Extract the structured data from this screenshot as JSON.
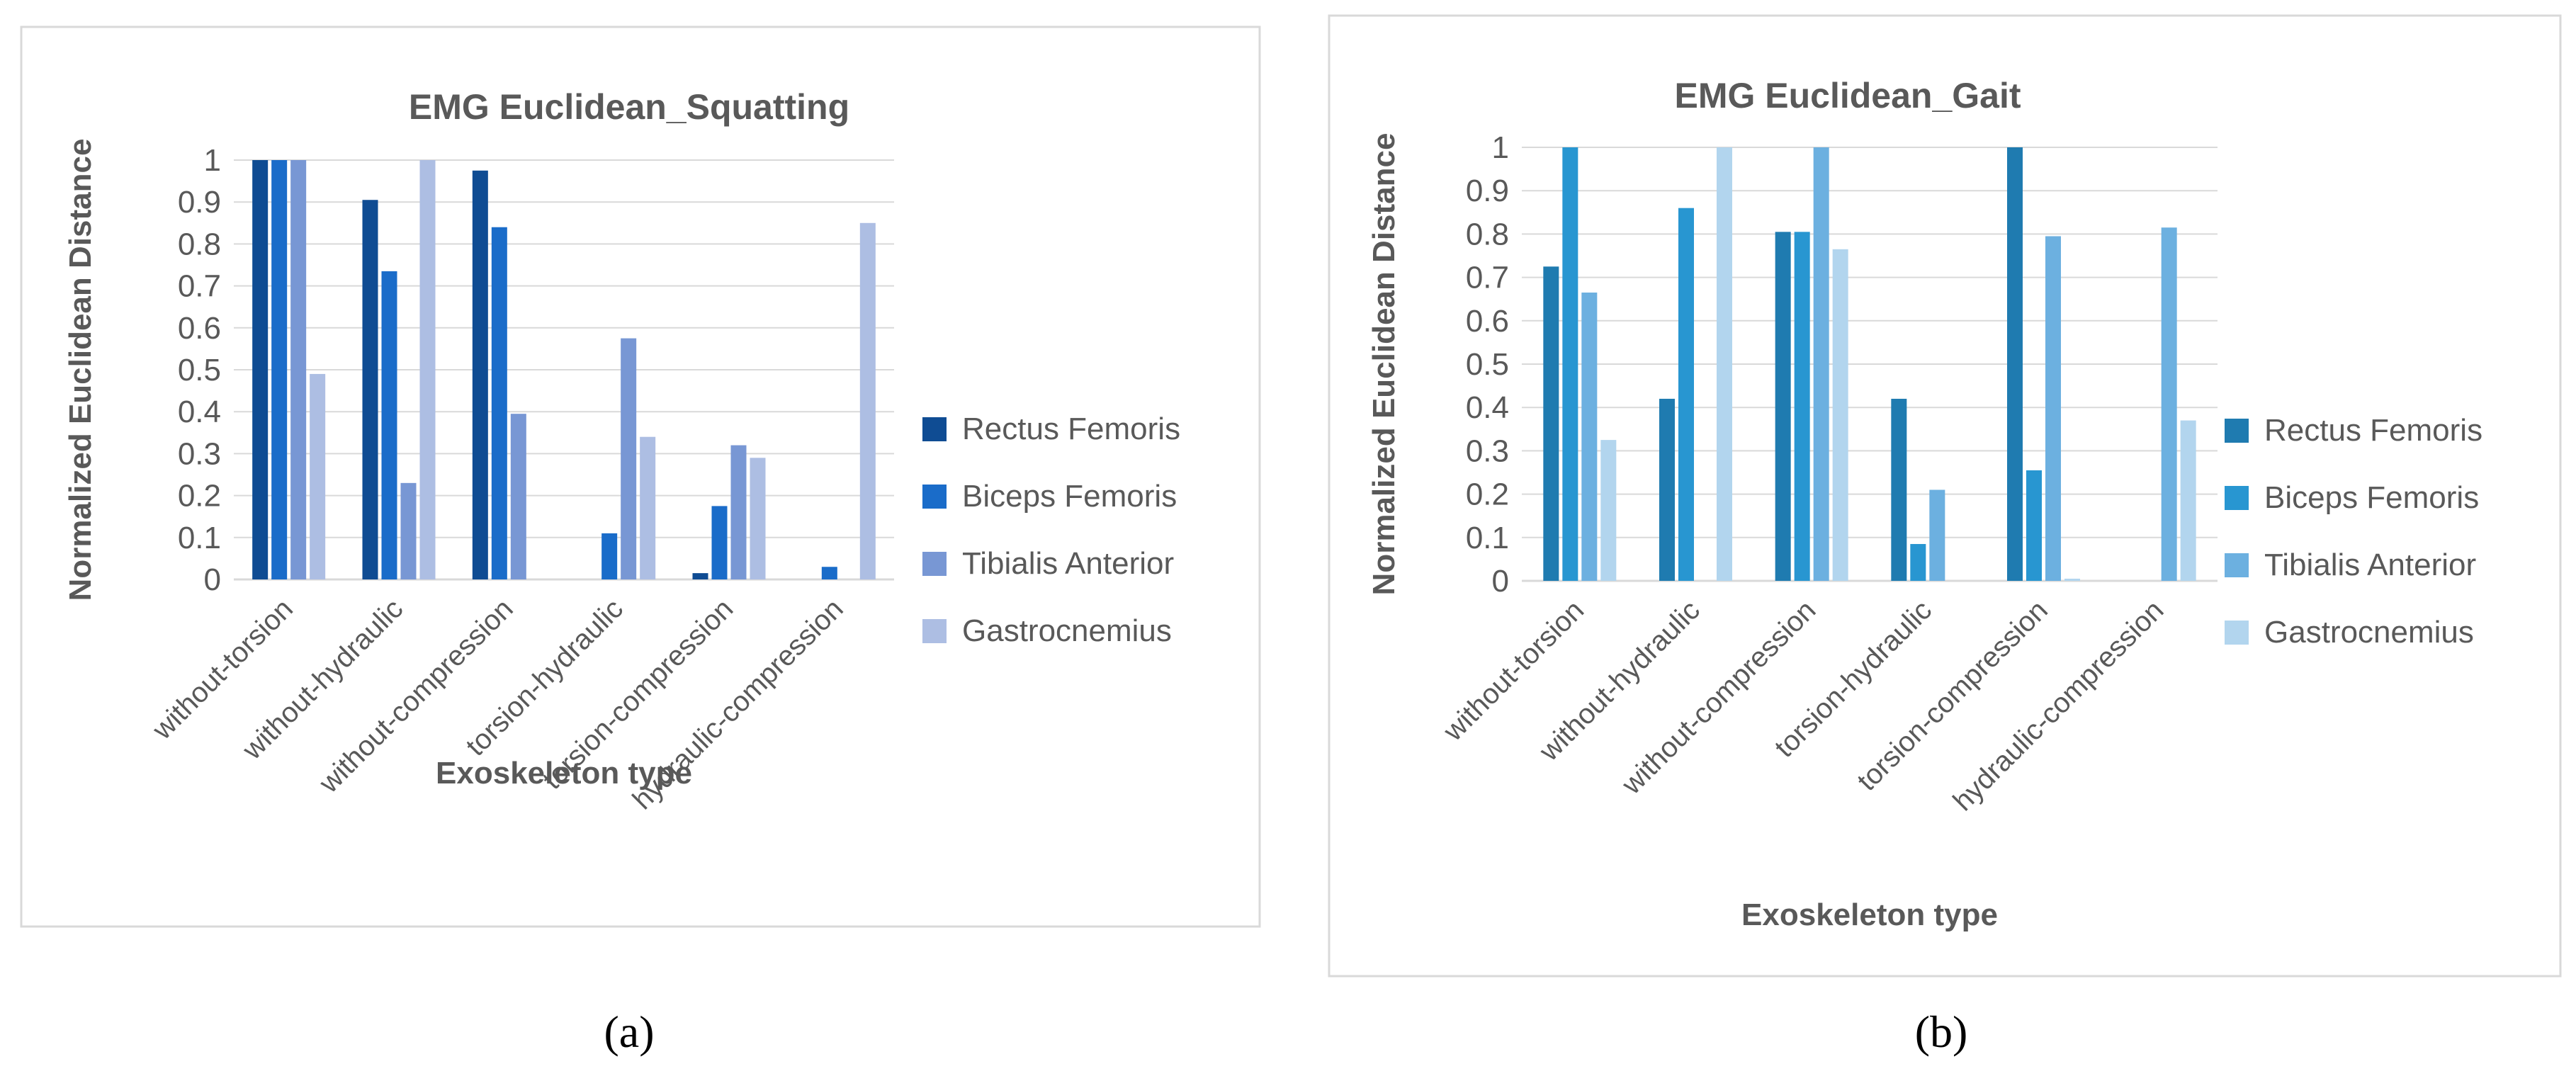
{
  "chart_data": [
    {
      "type": "bar",
      "caption": "(a)",
      "title": "EMG  Euclidean_Squatting",
      "xlabel": "Exoskeleton type",
      "ylabel": "Normalized Euclidean Distance",
      "ylim": [
        0,
        1
      ],
      "yticks": [
        "0",
        "0.1",
        "0.2",
        "0.3",
        "0.4",
        "0.5",
        "0.6",
        "0.7",
        "0.8",
        "0.9",
        "1"
      ],
      "grid": true,
      "legend_position": "right",
      "categories": [
        "without-torsion",
        "without-hydraulic",
        "without-compression",
        "torsion-hydraulic",
        "torsion-compression",
        "hydraulic-compression"
      ],
      "series": [
        {
          "name": "Rectus Femoris",
          "color": "#0f4c93",
          "values": [
            1.0,
            0.905,
            0.975,
            0.0,
            0.015,
            0.0
          ]
        },
        {
          "name": "Biceps Femoris",
          "color": "#1a6cc9",
          "values": [
            1.0,
            0.735,
            0.84,
            0.11,
            0.175,
            0.03
          ]
        },
        {
          "name": "Tibialis Anterior",
          "color": "#7897d4",
          "values": [
            1.0,
            0.23,
            0.395,
            0.575,
            0.32,
            0.0
          ]
        },
        {
          "name": "Gastrocnemius",
          "color": "#adbee3",
          "values": [
            0.49,
            1.0,
            0.0,
            0.34,
            0.29,
            0.85
          ]
        }
      ]
    },
    {
      "type": "bar",
      "caption": "(b)",
      "title": "EMG  Euclidean_Gait",
      "xlabel": "Exoskeleton type",
      "ylabel": "Normalized Euclidean Distance",
      "ylim": [
        0,
        1
      ],
      "yticks": [
        "0",
        "0.1",
        "0.2",
        "0.3",
        "0.4",
        "0.5",
        "0.6",
        "0.7",
        "0.8",
        "0.9",
        "1"
      ],
      "grid": true,
      "legend_position": "right",
      "categories": [
        "without-torsion",
        "without-hydraulic",
        "without-compression",
        "torsion-hydraulic",
        "torsion-compression",
        "hydraulic-compression"
      ],
      "series": [
        {
          "name": "Rectus Femoris",
          "color": "#1f7bb0",
          "values": [
            0.725,
            0.42,
            0.805,
            0.42,
            1.0,
            0.0
          ]
        },
        {
          "name": "Biceps Femoris",
          "color": "#2896d1",
          "values": [
            1.0,
            0.86,
            0.805,
            0.085,
            0.255,
            0.0
          ]
        },
        {
          "name": "Tibialis Anterior",
          "color": "#6cb0e0",
          "values": [
            0.665,
            0.0,
            1.0,
            0.21,
            0.795,
            0.815
          ]
        },
        {
          "name": "Gastrocnemius",
          "color": "#b2d5ee",
          "values": [
            0.325,
            1.0,
            0.765,
            0.0,
            0.005,
            0.37
          ]
        }
      ]
    }
  ]
}
